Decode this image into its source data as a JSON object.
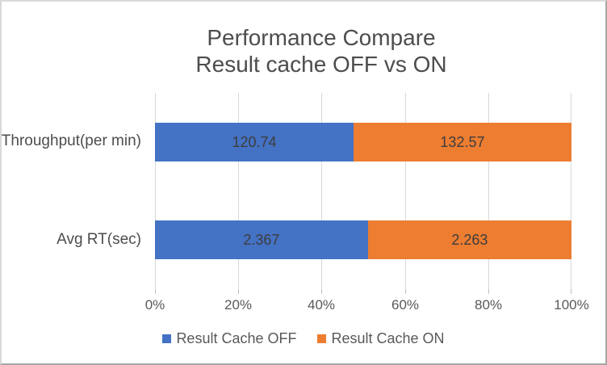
{
  "window": {
    "background": "#ffffff",
    "border_light": "#d9d9d9",
    "border_dark": "#a6a6a6"
  },
  "chart_data": {
    "type": "bar",
    "subtype": "horizontal-100pct-stacked",
    "title": "Performance Compare Result cache OFF vs ON",
    "title_lines": [
      "Performance Compare",
      "Result cache OFF vs ON"
    ],
    "categories": [
      "Throughput(per min)",
      "Avg RT(sec)"
    ],
    "series": [
      {
        "name": "Result Cache OFF",
        "color": "#4472C4",
        "values": [
          120.74,
          2.367
        ]
      },
      {
        "name": "Result Cache ON",
        "color": "#ED7D31",
        "values": [
          132.57,
          2.263
        ]
      }
    ],
    "x_tick_labels": [
      "0%",
      "20%",
      "40%",
      "60%",
      "80%",
      "100%"
    ],
    "xlim_percent": [
      0,
      100
    ],
    "grid": "vertical",
    "gridline_color": "#d9d9d9",
    "legend_position": "bottom",
    "axis_text_color": "#595959",
    "data_label_color": "#3d3d3d",
    "title_color": "#4d4d4d"
  }
}
